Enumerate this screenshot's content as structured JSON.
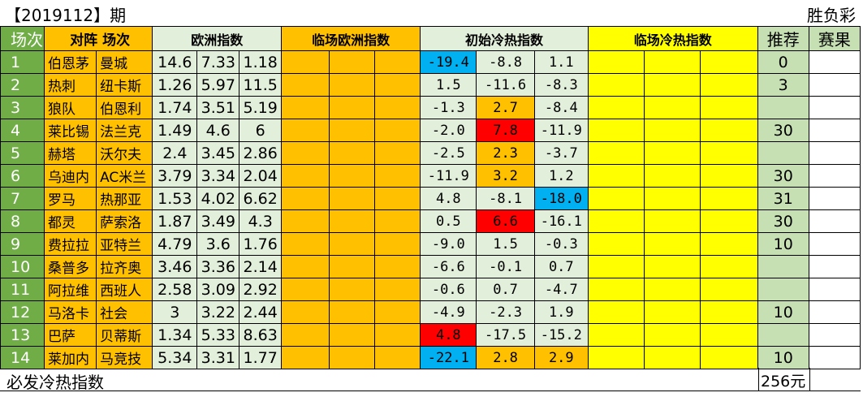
{
  "header": {
    "period": "【2019112】期",
    "game_type": "胜负彩"
  },
  "columns": {
    "num": "场次",
    "teams": "对阵  场次",
    "euro_odds": "欧洲指数",
    "live_euro": "临场欧洲指数",
    "init_heat": "初始冷热指数",
    "live_heat": "临场冷热指数",
    "recommend": "推荐",
    "result": "赛果"
  },
  "colors": {
    "green": "#70ad47",
    "light_green": "#e2efda",
    "orange": "#ffc000",
    "yellow": "#ffff00",
    "red": "#ff0000",
    "blue": "#00b0f0"
  },
  "rows": [
    {
      "num": "1",
      "home": "伯恩茅",
      "away": "曼城",
      "odds": [
        "14.6",
        "7.33",
        "1.18"
      ],
      "heat": [
        "-19.4",
        "-8.8",
        "1.1"
      ],
      "hl": [
        "blue",
        "",
        ""
      ],
      "rec": "0",
      "result": ""
    },
    {
      "num": "2",
      "home": "热刺",
      "away": "纽卡斯",
      "odds": [
        "1.26",
        "5.97",
        "11.5"
      ],
      "heat": [
        "1.5",
        "-11.6",
        "-8.3"
      ],
      "hl": [
        "",
        "",
        ""
      ],
      "rec": "3",
      "result": ""
    },
    {
      "num": "3",
      "home": "狼队",
      "away": "伯恩利",
      "odds": [
        "1.74",
        "3.51",
        "5.19"
      ],
      "heat": [
        "-1.3",
        "2.7",
        "-8.4"
      ],
      "hl": [
        "",
        "org",
        ""
      ],
      "rec": "",
      "result": ""
    },
    {
      "num": "4",
      "home": "莱比锡",
      "away": "法兰克",
      "odds": [
        "1.49",
        "4.6",
        "6"
      ],
      "heat": [
        "-2.0",
        "7.8",
        "-11.9"
      ],
      "hl": [
        "",
        "red",
        ""
      ],
      "rec": "30",
      "result": ""
    },
    {
      "num": "5",
      "home": "赫塔",
      "away": "沃尔夫",
      "odds": [
        "2.4",
        "3.45",
        "2.86"
      ],
      "heat": [
        "-2.5",
        "2.3",
        "-3.7"
      ],
      "hl": [
        "",
        "org",
        ""
      ],
      "rec": "",
      "result": ""
    },
    {
      "num": "6",
      "home": "乌迪内",
      "away": "AC米兰",
      "odds": [
        "3.79",
        "3.34",
        "2.04"
      ],
      "heat": [
        "-11.9",
        "3.2",
        "1.2"
      ],
      "hl": [
        "",
        "org",
        ""
      ],
      "rec": "30",
      "result": ""
    },
    {
      "num": "7",
      "home": "罗马",
      "away": "热那亚",
      "odds": [
        "1.53",
        "4.02",
        "6.62"
      ],
      "heat": [
        "4.8",
        "-8.1",
        "-18.0"
      ],
      "hl": [
        "",
        "",
        "blue"
      ],
      "rec": "31",
      "result": ""
    },
    {
      "num": "8",
      "home": "都灵",
      "away": "萨索洛",
      "odds": [
        "1.87",
        "3.49",
        "4.3"
      ],
      "heat": [
        "0.5",
        "6.6",
        "-16.1"
      ],
      "hl": [
        "",
        "red",
        ""
      ],
      "rec": "30",
      "result": ""
    },
    {
      "num": "9",
      "home": "费拉拉",
      "away": "亚特兰",
      "odds": [
        "4.79",
        "3.6",
        "1.76"
      ],
      "heat": [
        "-9.0",
        "1.5",
        "-0.3"
      ],
      "hl": [
        "",
        "",
        ""
      ],
      "rec": "10",
      "result": ""
    },
    {
      "num": "10",
      "home": "桑普多",
      "away": "拉齐奥",
      "odds": [
        "3.46",
        "3.36",
        "2.14"
      ],
      "heat": [
        "-6.6",
        "-0.1",
        "0.7"
      ],
      "hl": [
        "",
        "",
        ""
      ],
      "rec": "",
      "result": ""
    },
    {
      "num": "11",
      "home": "阿拉维",
      "away": "西班人",
      "odds": [
        "2.58",
        "3.09",
        "2.92"
      ],
      "heat": [
        "-0.6",
        "0.7",
        "-4.7"
      ],
      "hl": [
        "",
        "",
        ""
      ],
      "rec": "",
      "result": ""
    },
    {
      "num": "12",
      "home": "马洛卡",
      "away": "社会",
      "odds": [
        "3",
        "3.22",
        "2.44"
      ],
      "heat": [
        "-4.9",
        "-2.3",
        "1.9"
      ],
      "hl": [
        "",
        "",
        ""
      ],
      "rec": "10",
      "result": ""
    },
    {
      "num": "13",
      "home": "巴萨",
      "away": "贝蒂斯",
      "odds": [
        "1.34",
        "5.33",
        "8.63"
      ],
      "heat": [
        "4.8",
        "-17.5",
        "-15.2"
      ],
      "hl": [
        "red",
        "",
        ""
      ],
      "rec": "",
      "result": ""
    },
    {
      "num": "14",
      "home": "莱加内",
      "away": "马竞技",
      "odds": [
        "5.34",
        "3.31",
        "1.77"
      ],
      "heat": [
        "-22.1",
        "2.8",
        "2.9"
      ],
      "hl": [
        "blue",
        "org",
        "org"
      ],
      "rec": "10",
      "result": ""
    }
  ],
  "footer": {
    "label": "必发冷热指数",
    "total": "256元"
  }
}
